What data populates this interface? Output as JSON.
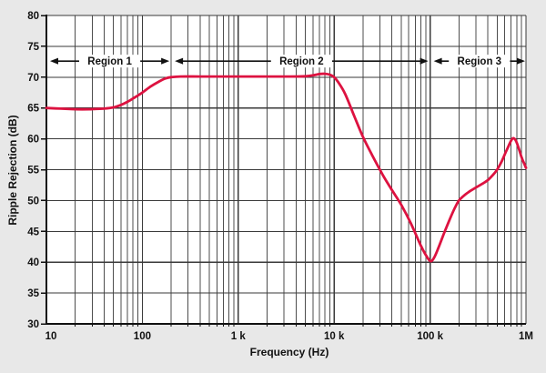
{
  "figure": {
    "background_color": "#e8e8e8",
    "plot_background": "#ffffff",
    "grid_minor_color": "#4d4d4d",
    "grid_major_color": "#3a3a3a",
    "axis_color": "#111111",
    "text_color": "#111111"
  },
  "chart_data": {
    "type": "line",
    "title": "",
    "xlabel": "Frequency (Hz)",
    "ylabel": "Ripple Rejection (dB)",
    "x_scale": "log",
    "xlim": [
      10,
      1000000
    ],
    "ylim": [
      30,
      80
    ],
    "grid": true,
    "y_ticks": [
      30,
      35,
      40,
      45,
      50,
      55,
      60,
      65,
      70,
      75,
      80
    ],
    "x_major_ticks": [
      {
        "value": 10,
        "label": "10"
      },
      {
        "value": 100,
        "label": "100"
      },
      {
        "value": 1000,
        "label": "1 k"
      },
      {
        "value": 10000,
        "label": "10 k"
      },
      {
        "value": 100000,
        "label": "100 k"
      },
      {
        "value": 1000000,
        "label": "1M"
      }
    ],
    "series": [
      {
        "name": "ripple-rejection-curve",
        "color": "#dd1240",
        "stroke_width": 2.8,
        "points": [
          [
            10,
            65.0
          ],
          [
            14,
            64.9
          ],
          [
            20,
            64.8
          ],
          [
            28,
            64.8
          ],
          [
            40,
            64.9
          ],
          [
            50,
            65.1
          ],
          [
            60,
            65.5
          ],
          [
            70,
            66.0
          ],
          [
            85,
            66.8
          ],
          [
            100,
            67.5
          ],
          [
            120,
            68.4
          ],
          [
            150,
            69.3
          ],
          [
            175,
            69.8
          ],
          [
            200,
            70.0
          ],
          [
            250,
            70.1
          ],
          [
            400,
            70.1
          ],
          [
            700,
            70.1
          ],
          [
            1000,
            70.1
          ],
          [
            2000,
            70.1
          ],
          [
            3500,
            70.1
          ],
          [
            5000,
            70.15
          ],
          [
            6000,
            70.3
          ],
          [
            7000,
            70.5
          ],
          [
            8000,
            70.55
          ],
          [
            9000,
            70.4
          ],
          [
            10000,
            70.0
          ],
          [
            11000,
            69.2
          ],
          [
            13000,
            67.3
          ],
          [
            16000,
            63.9
          ],
          [
            20000,
            60.3
          ],
          [
            25000,
            57.3
          ],
          [
            32000,
            54.2
          ],
          [
            40000,
            51.7
          ],
          [
            50000,
            49.3
          ],
          [
            63000,
            46.3
          ],
          [
            80000,
            42.7
          ],
          [
            90000,
            41.2
          ],
          [
            100000,
            40.2
          ],
          [
            108000,
            40.5
          ],
          [
            120000,
            42.0
          ],
          [
            140000,
            44.7
          ],
          [
            160000,
            46.9
          ],
          [
            180000,
            48.7
          ],
          [
            200000,
            50.0
          ],
          [
            230000,
            50.9
          ],
          [
            260000,
            51.5
          ],
          [
            300000,
            52.1
          ],
          [
            350000,
            52.7
          ],
          [
            400000,
            53.3
          ],
          [
            450000,
            54.1
          ],
          [
            500000,
            55.0
          ],
          [
            560000,
            56.4
          ],
          [
            630000,
            58.2
          ],
          [
            700000,
            59.7
          ],
          [
            740000,
            60.1
          ],
          [
            790000,
            59.6
          ],
          [
            850000,
            58.2
          ],
          [
            900000,
            57.0
          ],
          [
            950000,
            56.1
          ],
          [
            1000000,
            55.3
          ]
        ]
      }
    ],
    "annotations": [
      {
        "type": "region-span",
        "label": "Region 1",
        "x_start": 10,
        "x_end": 200,
        "y_db": 72.6
      },
      {
        "type": "region-span",
        "label": "Region 2",
        "x_start": 200,
        "x_end": 100000,
        "y_db": 72.6
      },
      {
        "type": "region-span",
        "label": "Region 3",
        "x_start": 100000,
        "x_end": 1000000,
        "y_db": 72.6
      }
    ]
  }
}
